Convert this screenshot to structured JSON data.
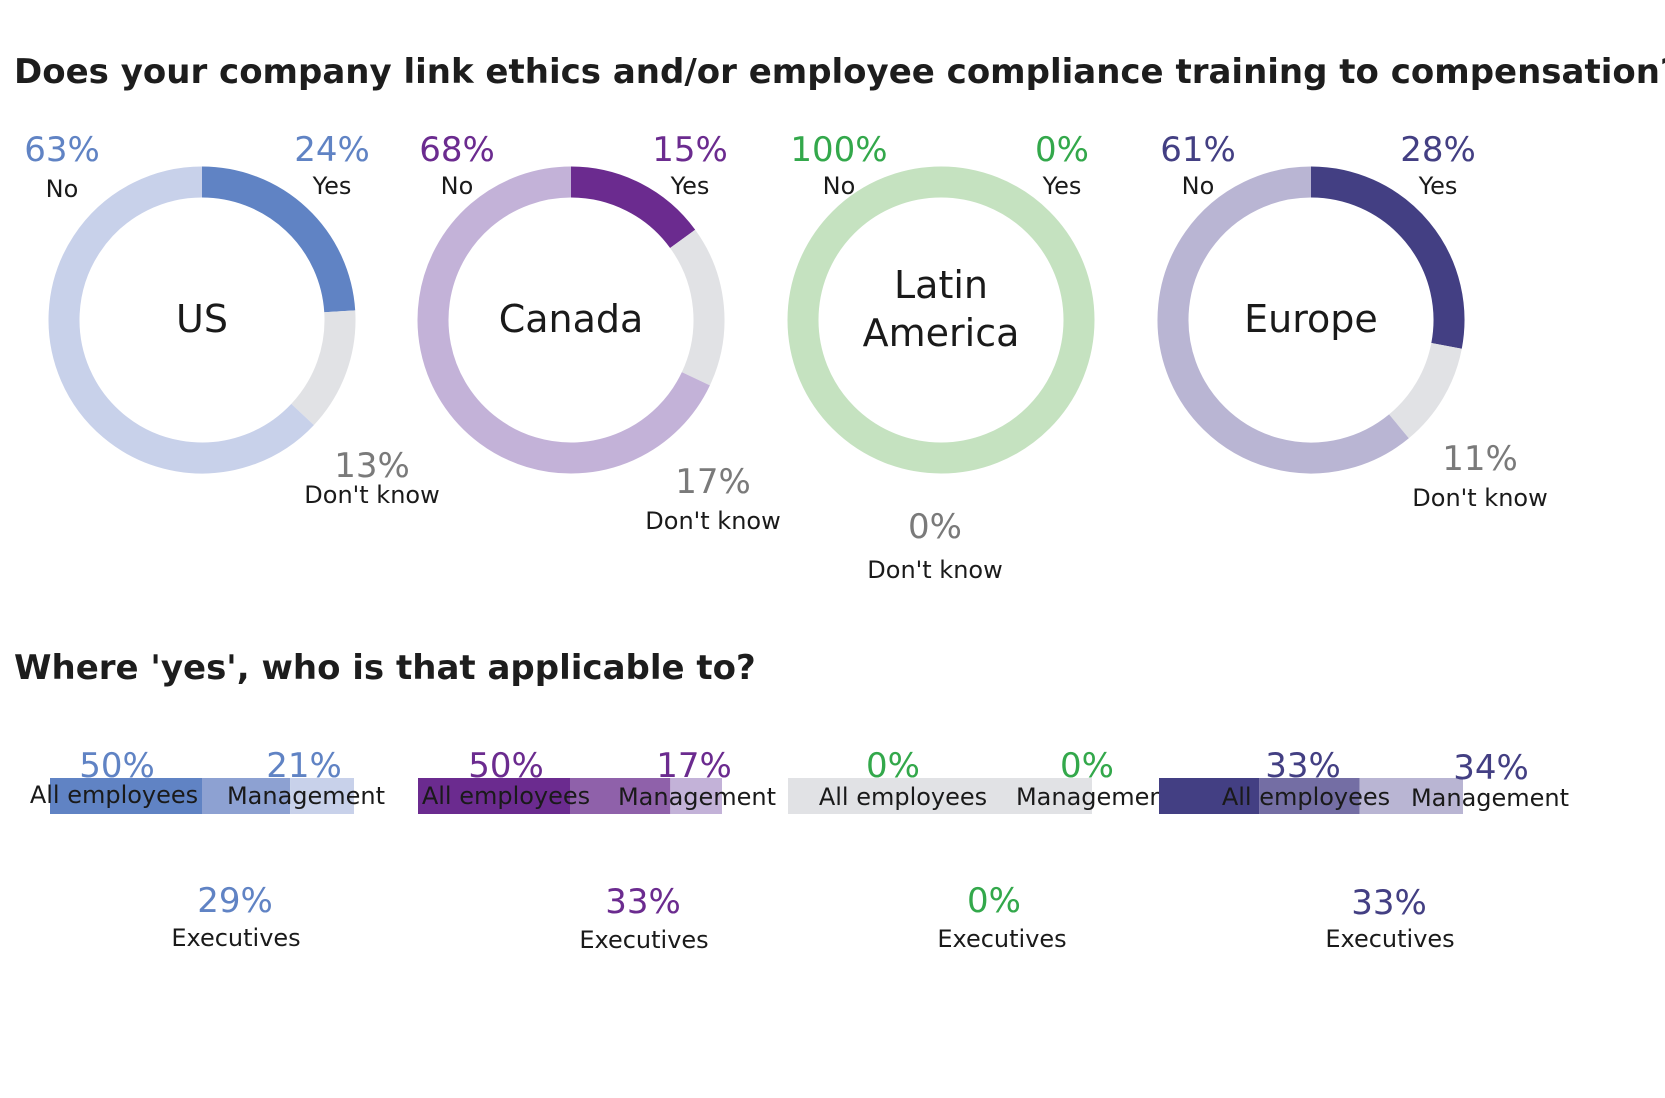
{
  "headings": {
    "main": "Does your company link ethics and/or employee compliance training to compensation?",
    "sub": "Where 'yes', who is that applicable to?"
  },
  "chart_data": [
    {
      "type": "pie",
      "title": "US",
      "categories": [
        "Yes",
        "Don't know",
        "No"
      ],
      "values": [
        24,
        13,
        63
      ],
      "labels": [
        "24%",
        "13%",
        "63%"
      ],
      "colors": [
        "#6083c4",
        "#e1e2e5",
        "#c8d1ea"
      ],
      "label_color": "#6083c4"
    },
    {
      "type": "pie",
      "title": "Canada",
      "categories": [
        "Yes",
        "Don't know",
        "No"
      ],
      "values": [
        15,
        17,
        68
      ],
      "labels": [
        "15%",
        "17%",
        "68%"
      ],
      "colors": [
        "#6b2b8f",
        "#e1e2e5",
        "#c3b2d8"
      ],
      "label_color": "#6b2b8f"
    },
    {
      "type": "pie",
      "title_lines": [
        "Latin",
        "America"
      ],
      "categories": [
        "Yes",
        "Don't know",
        "No"
      ],
      "values": [
        0,
        0,
        100
      ],
      "labels": [
        "0%",
        "0%",
        "100%"
      ],
      "colors": [
        "#2fae4c",
        "#e1e2e5",
        "#c5e2c0"
      ],
      "label_color": "#33a84b"
    },
    {
      "type": "pie",
      "title": "Europe",
      "categories": [
        "Yes",
        "Don't know",
        "No"
      ],
      "values": [
        28,
        11,
        61
      ],
      "labels": [
        "28%",
        "11%",
        "61%"
      ],
      "colors": [
        "#433f83",
        "#e1e2e5",
        "#b9b5d3"
      ],
      "label_color": "#433f83"
    },
    {
      "type": "bar",
      "stacked": true,
      "categories": [
        "All employees",
        "Executives",
        "Management"
      ],
      "values": [
        50,
        29,
        21
      ],
      "labels": [
        "50%",
        "29%",
        "21%"
      ],
      "colors": [
        "#6083c4",
        "#8da1d2",
        "#c8d1ea"
      ],
      "label_color": "#6083c4"
    },
    {
      "type": "bar",
      "stacked": true,
      "categories": [
        "All employees",
        "Executives",
        "Management"
      ],
      "values": [
        50,
        33,
        17
      ],
      "labels": [
        "50%",
        "33%",
        "17%"
      ],
      "colors": [
        "#6b2b8f",
        "#8f61aa",
        "#c3b2d8"
      ],
      "label_color": "#6b2b8f"
    },
    {
      "type": "bar",
      "stacked": true,
      "categories": [
        "All employees",
        "Executives",
        "Management"
      ],
      "values": [
        0,
        0,
        0
      ],
      "labels": [
        "0%",
        "0%",
        "0%"
      ],
      "colors": [
        "#e1e2e5",
        "#e1e2e5",
        "#e1e2e5"
      ],
      "empty_color": "#e1e2e5",
      "label_color": "#33a84b"
    },
    {
      "type": "bar",
      "stacked": true,
      "categories": [
        "All employees",
        "Executives",
        "Management"
      ],
      "values": [
        33,
        33,
        34
      ],
      "labels": [
        "33%",
        "33%",
        "34%"
      ],
      "colors": [
        "#433f83",
        "#746ea4",
        "#b9b5d3"
      ],
      "label_color": "#433f83"
    }
  ]
}
